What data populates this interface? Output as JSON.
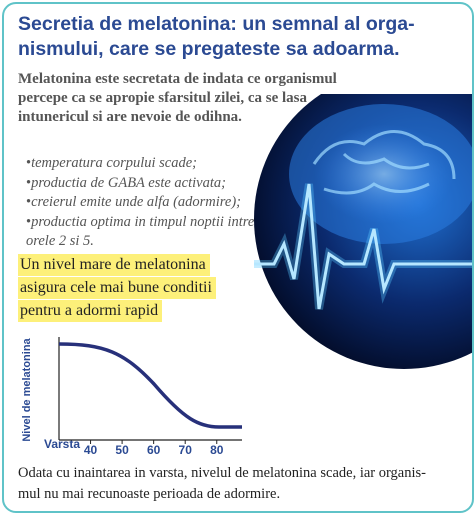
{
  "title": {
    "lines": [
      "Secretia de melatonina: un semnal  al orga-",
      "nismului, care se pregateste sa adoarma."
    ]
  },
  "intro": "Melatonina este secretata de indata ce organismul percepe ca se apropie sfarsitul zilei, ca se lasa intunericul si are nevoie de odihna.",
  "bullets": [
    "temperatura corpului scade;",
    "productia de GABA este activata;",
    "creierul emite unde alfa (adormire);",
    "productia optima in timpul noptii intre orele 2 si 5."
  ],
  "highlight": {
    "lines": [
      "Un nivel mare de melatonina",
      "asigura cele mai bune conditii",
      "pentru a adormi rapid"
    ]
  },
  "chart": {
    "ylabel": "Nivel de melatonina",
    "xlabel": "Varsta",
    "xlim": [
      30,
      88
    ],
    "xticks": [
      40,
      50,
      60,
      70,
      80
    ],
    "line_color": "#27307a"
  },
  "footer": {
    "lines": [
      "Odata cu inaintarea in varsta, nivelul de melatonina scade, iar organis-",
      "mul nu mai recunoaste perioada de adormire."
    ]
  }
}
